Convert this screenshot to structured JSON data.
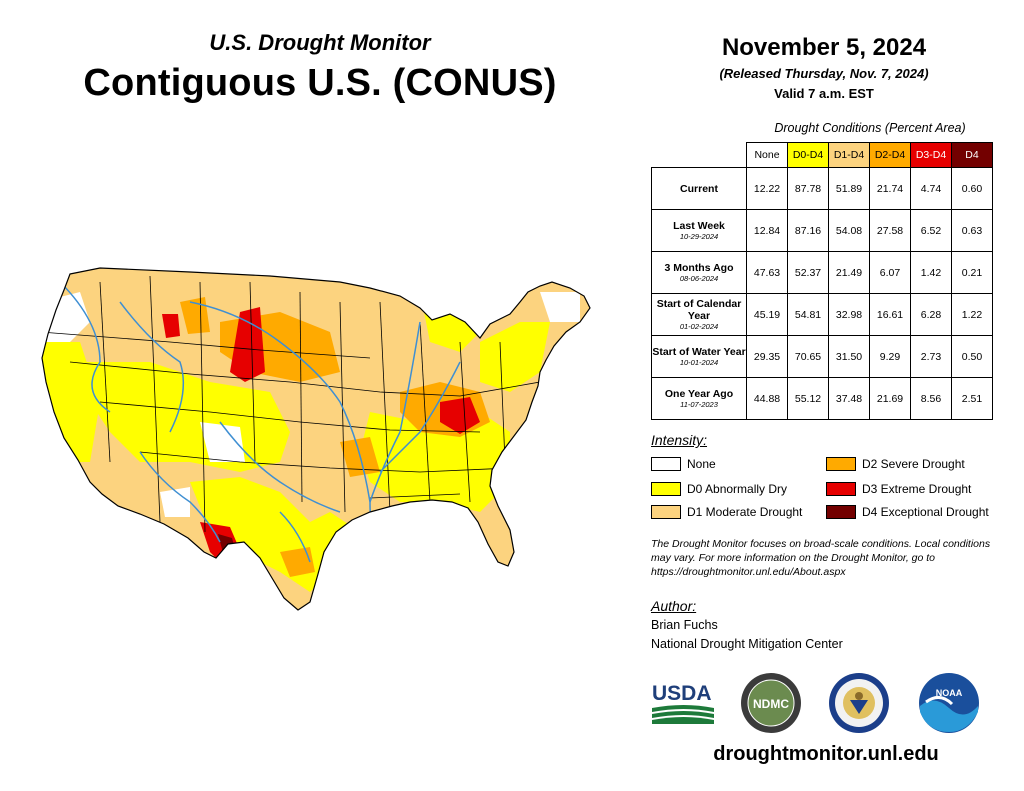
{
  "header": {
    "subtitle": "U.S. Drought Monitor",
    "title": "Contiguous U.S. (CONUS)",
    "date": "November 5, 2024",
    "released": "(Released Thursday, Nov. 7, 2024)",
    "valid": "Valid 7 a.m. EST"
  },
  "table": {
    "caption": "Drought Conditions (Percent Area)",
    "columns": [
      {
        "label": "None",
        "bg": "#ffffff",
        "fg": "#000000"
      },
      {
        "label": "D0-D4",
        "bg": "#ffff00",
        "fg": "#000000"
      },
      {
        "label": "D1-D4",
        "bg": "#fcd37f",
        "fg": "#000000"
      },
      {
        "label": "D2-D4",
        "bg": "#ffaa00",
        "fg": "#000000"
      },
      {
        "label": "D3-D4",
        "bg": "#e60000",
        "fg": "#ffffff"
      },
      {
        "label": "D4",
        "bg": "#730000",
        "fg": "#ffffff"
      }
    ],
    "rows": [
      {
        "label": "Current",
        "date": "",
        "values": [
          "12.22",
          "87.78",
          "51.89",
          "21.74",
          "4.74",
          "0.60"
        ]
      },
      {
        "label": "Last Week",
        "date": "10-29-2024",
        "values": [
          "12.84",
          "87.16",
          "54.08",
          "27.58",
          "6.52",
          "0.63"
        ]
      },
      {
        "label": "3 Months Ago",
        "date": "08-06-2024",
        "values": [
          "47.63",
          "52.37",
          "21.49",
          "6.07",
          "1.42",
          "0.21"
        ]
      },
      {
        "label": "Start of Calendar Year",
        "date": "01-02-2024",
        "values": [
          "45.19",
          "54.81",
          "32.98",
          "16.61",
          "6.28",
          "1.22"
        ]
      },
      {
        "label": "Start of Water Year",
        "date": "10-01-2024",
        "values": [
          "29.35",
          "70.65",
          "31.50",
          "9.29",
          "2.73",
          "0.50"
        ]
      },
      {
        "label": "One Year Ago",
        "date": "11-07-2023",
        "values": [
          "44.88",
          "55.12",
          "37.48",
          "21.69",
          "8.56",
          "2.51"
        ]
      }
    ]
  },
  "legend": {
    "title": "Intensity:",
    "items": [
      {
        "label": "None",
        "color": "#ffffff"
      },
      {
        "label": "D0 Abnormally Dry",
        "color": "#ffff00"
      },
      {
        "label": "D1 Moderate Drought",
        "color": "#fcd37f"
      },
      {
        "label": "D2 Severe Drought",
        "color": "#ffaa00"
      },
      {
        "label": "D3 Extreme Drought",
        "color": "#e60000"
      },
      {
        "label": "D4 Exceptional Drought",
        "color": "#730000"
      }
    ]
  },
  "disclaimer": "The Drought Monitor focuses on broad-scale conditions. Local conditions may vary. For more information on the Drought Monitor, go to https://droughtmonitor.unl.edu/About.aspx",
  "author": {
    "title": "Author:",
    "name": "Brian Fuchs",
    "org": "National Drought Mitigation Center"
  },
  "logos": {
    "usda": "USDA",
    "ndmc": "NDMC",
    "noaa": "NOAA"
  },
  "website": "droughtmonitor.unl.edu",
  "map": {
    "river_color": "#3f8fd2",
    "border_color": "#000000"
  }
}
